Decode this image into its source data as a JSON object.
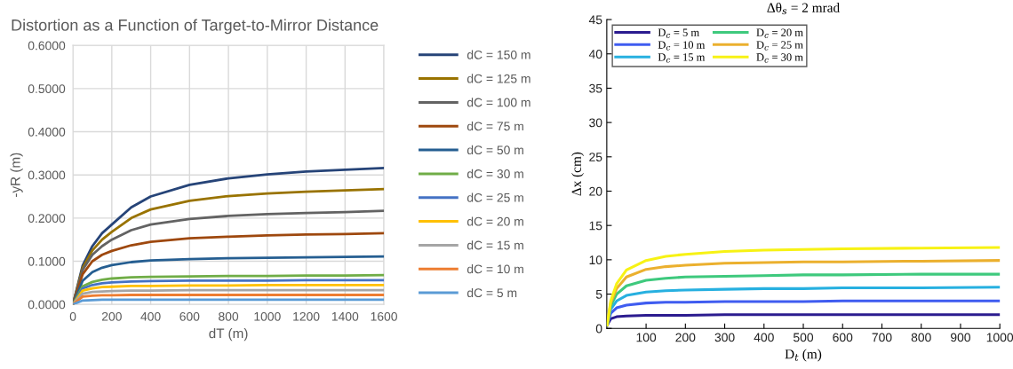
{
  "chart_data": [
    {
      "type": "line",
      "title": "Distortion as a Function of Target-to-Mirror Distance",
      "xlabel": "dT (m)",
      "ylabel": "-yR (m)",
      "x": [
        0,
        50,
        100,
        150,
        200,
        300,
        400,
        600,
        800,
        1000,
        1200,
        1400,
        1600
      ],
      "xlim": [
        0,
        1600
      ],
      "xticks": [
        0,
        200,
        400,
        600,
        800,
        1000,
        1200,
        1400,
        1600
      ],
      "ylim": [
        0,
        0.6
      ],
      "yticks": [
        {
          "value": 0,
          "label": "0.0000"
        },
        {
          "value": 0.1,
          "label": "0.1000"
        },
        {
          "value": 0.2,
          "label": "0.2000"
        },
        {
          "value": 0.3,
          "label": "0.3000"
        },
        {
          "value": 0.4,
          "label": "0.4000"
        },
        {
          "value": 0.5,
          "label": "0.5000"
        },
        {
          "value": 0.6,
          "label": "0.6000"
        }
      ],
      "grid": true,
      "legend": "right",
      "marker": "none",
      "line_style": "solid",
      "series": [
        {
          "name": "dC = 150 m",
          "color": "#264478",
          "values": [
            0,
            0.09,
            0.135,
            0.165,
            0.185,
            0.225,
            0.25,
            0.277,
            0.292,
            0.301,
            0.308,
            0.312,
            0.316
          ]
        },
        {
          "name": "dC = 125 m",
          "color": "#997300",
          "values": [
            0,
            0.085,
            0.125,
            0.15,
            0.168,
            0.2,
            0.22,
            0.24,
            0.251,
            0.257,
            0.261,
            0.264,
            0.267
          ]
        },
        {
          "name": "dC = 100 m",
          "color": "#636363",
          "values": [
            0,
            0.08,
            0.115,
            0.135,
            0.15,
            0.172,
            0.185,
            0.198,
            0.205,
            0.209,
            0.212,
            0.214,
            0.217
          ]
        },
        {
          "name": "dC = 75 m",
          "color": "#9e480e",
          "values": [
            0,
            0.07,
            0.1,
            0.115,
            0.124,
            0.137,
            0.145,
            0.153,
            0.157,
            0.16,
            0.162,
            0.163,
            0.165
          ]
        },
        {
          "name": "dC = 50 m",
          "color": "#255e91",
          "values": [
            0,
            0.055,
            0.075,
            0.085,
            0.091,
            0.098,
            0.102,
            0.105,
            0.107,
            0.108,
            0.109,
            0.11,
            0.111
          ]
        },
        {
          "name": "dC = 30 m",
          "color": "#70ad47",
          "values": [
            0,
            0.042,
            0.052,
            0.057,
            0.06,
            0.063,
            0.064,
            0.065,
            0.066,
            0.066,
            0.067,
            0.067,
            0.068
          ]
        },
        {
          "name": "dC = 25 m",
          "color": "#4472c4",
          "values": [
            0,
            0.037,
            0.045,
            0.049,
            0.051,
            0.053,
            0.054,
            0.055,
            0.055,
            0.055,
            0.056,
            0.056,
            0.056
          ]
        },
        {
          "name": "dC = 20 m",
          "color": "#ffc000",
          "values": [
            0,
            0.032,
            0.037,
            0.04,
            0.041,
            0.043,
            0.043,
            0.044,
            0.044,
            0.045,
            0.045,
            0.045,
            0.045
          ]
        },
        {
          "name": "dC = 15 m",
          "color": "#a5a5a5",
          "values": [
            0,
            0.025,
            0.029,
            0.03,
            0.031,
            0.032,
            0.032,
            0.033,
            0.033,
            0.033,
            0.033,
            0.033,
            0.033
          ]
        },
        {
          "name": "dC = 10 m",
          "color": "#ed7d31",
          "values": [
            0,
            0.018,
            0.02,
            0.021,
            0.021,
            0.022,
            0.022,
            0.022,
            0.022,
            0.022,
            0.022,
            0.022,
            0.022
          ]
        },
        {
          "name": "dC = 5 m",
          "color": "#5b9bd5",
          "values": [
            0,
            0.009,
            0.01,
            0.011,
            0.011,
            0.011,
            0.011,
            0.011,
            0.011,
            0.011,
            0.011,
            0.011,
            0.011
          ]
        }
      ]
    },
    {
      "type": "line",
      "title": "Δθ$_{s}$ = 2 mrad",
      "xlabel": "D$_{t}$ (m)",
      "ylabel": "Δx (cm)",
      "x": [
        1,
        10,
        25,
        50,
        100,
        150,
        200,
        300,
        400,
        500,
        600,
        800,
        1000
      ],
      "xlim": [
        0,
        1000
      ],
      "xticks": [
        100,
        200,
        300,
        400,
        500,
        600,
        700,
        800,
        900,
        1000
      ],
      "ylim": [
        0,
        45
      ],
      "yticks": [
        0,
        5,
        10,
        15,
        20,
        25,
        30,
        35,
        40,
        45
      ],
      "grid": false,
      "legend": "top left",
      "marker": "none",
      "line_style": "solid",
      "series": [
        {
          "name": "D$_{c}$ = 5 m",
          "color": "#2b1b8f",
          "values": [
            0.5,
            1.4,
            1.7,
            1.8,
            1.9,
            1.9,
            1.9,
            2.0,
            2.0,
            2.0,
            2.0,
            2.0,
            2.0
          ]
        },
        {
          "name": "D$_{c}$ = 10 m",
          "color": "#3f5cf0",
          "values": [
            0.5,
            2.2,
            3.0,
            3.4,
            3.7,
            3.8,
            3.8,
            3.9,
            3.9,
            3.9,
            4.0,
            4.0,
            4.0
          ]
        },
        {
          "name": "D$_{c}$ = 15 m",
          "color": "#27b0e0",
          "values": [
            0.5,
            2.8,
            4.0,
            4.8,
            5.3,
            5.5,
            5.6,
            5.7,
            5.8,
            5.8,
            5.9,
            5.9,
            6.0
          ]
        },
        {
          "name": "D$_{c}$ = 20 m",
          "color": "#3ec97d",
          "values": [
            0.5,
            3.3,
            5.0,
            6.2,
            7.0,
            7.3,
            7.5,
            7.6,
            7.7,
            7.8,
            7.8,
            7.9,
            7.9
          ]
        },
        {
          "name": "D$_{c}$ = 25 m",
          "color": "#ebb02e",
          "values": [
            0.5,
            3.7,
            5.8,
            7.5,
            8.6,
            9.0,
            9.2,
            9.5,
            9.6,
            9.7,
            9.7,
            9.8,
            9.9
          ]
        },
        {
          "name": "D$_{c}$ = 30 m",
          "color": "#f7f214",
          "values": [
            0.5,
            4.0,
            6.5,
            8.5,
            9.9,
            10.5,
            10.8,
            11.2,
            11.4,
            11.5,
            11.6,
            11.7,
            11.8
          ]
        }
      ]
    }
  ]
}
